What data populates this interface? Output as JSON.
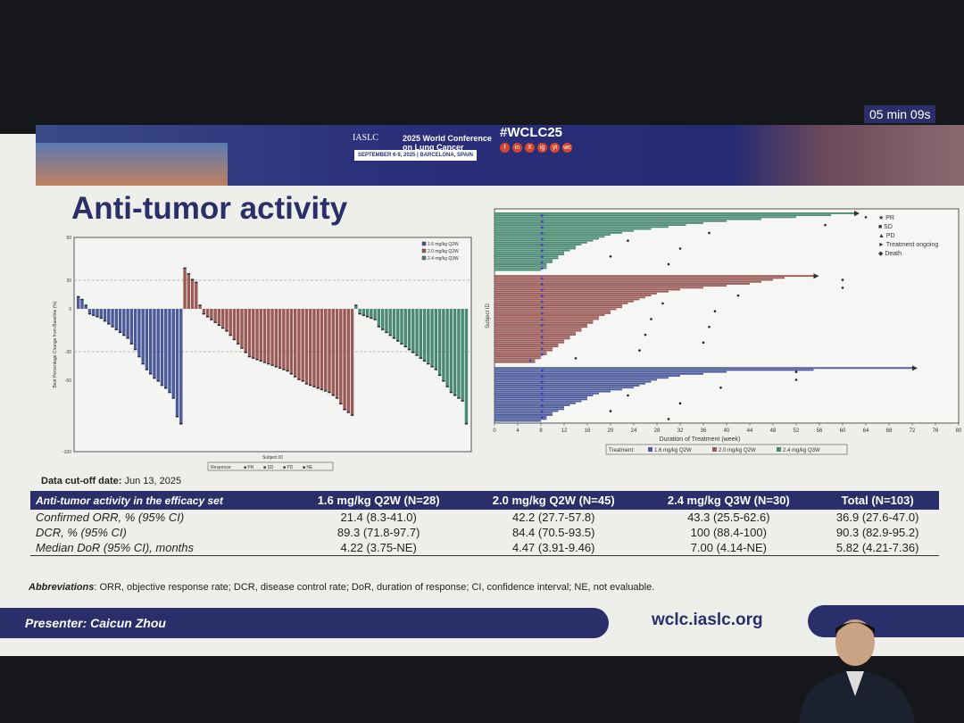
{
  "header": {
    "org": "IASLC",
    "conference": "2025 World Conference on Lung Cancer",
    "dates": "SEPTEMBER 6-9, 2025 | BARCELONA, SPAIN",
    "hashtag": "#WCLC25",
    "socials": [
      "f",
      "in",
      "X",
      "ig",
      "yt",
      "wc"
    ],
    "timer": "05 min 09s"
  },
  "title": "Anti-tumor activity",
  "colors": {
    "arm1": "#4b5a9a",
    "arm2": "#9a5a55",
    "arm3": "#4a8a72",
    "navy": "#2a2f6a"
  },
  "chart_data": [
    {
      "type": "bar",
      "subtype": "waterfall",
      "xlabel": "Subject ID",
      "ylabel": "Best Percentage Change from Baseline (%)",
      "ylim": [
        -100,
        50
      ],
      "yticks": [
        50,
        20,
        0,
        -30,
        -50,
        -100
      ],
      "reference_lines": [
        20,
        -30
      ],
      "legend": [
        "1.6 mg/kg Q2W",
        "2.0 mg/kg Q2W",
        "2.4 mg/kg Q3W"
      ],
      "legend_placement": "top-right",
      "response_legend": {
        "title": "Response:",
        "items": [
          "PR",
          "SD",
          "PD",
          "NE"
        ]
      },
      "series": [
        {
          "name": "1.6 mg/kg Q2W",
          "values": [
            8,
            6,
            2,
            -3,
            -4,
            -5,
            -6,
            -8,
            -10,
            -12,
            -14,
            -16,
            -18,
            -20,
            -24,
            -28,
            -33,
            -38,
            -42,
            -45,
            -48,
            -50,
            -53,
            -55,
            -58,
            -62,
            -75,
            -80
          ]
        },
        {
          "name": "2.0 mg/kg Q2W",
          "values": [
            28,
            24,
            20,
            18,
            2,
            -3,
            -5,
            -7,
            -9,
            -11,
            -13,
            -15,
            -18,
            -21,
            -24,
            -27,
            -30,
            -33,
            -34,
            -35,
            -36,
            -37,
            -38,
            -39,
            -40,
            -41,
            -42,
            -43,
            -45,
            -47,
            -49,
            -50,
            -52,
            -53,
            -54,
            -55,
            -56,
            -57,
            -58,
            -60,
            -62,
            -66,
            -70,
            -72,
            -74
          ]
        },
        {
          "name": "2.4 mg/kg Q3W",
          "values": [
            2,
            -3,
            -4,
            -5,
            -6,
            -7,
            -12,
            -14,
            -16,
            -18,
            -20,
            -22,
            -24,
            -26,
            -28,
            -30,
            -32,
            -34,
            -36,
            -38,
            -40,
            -42,
            -46,
            -50,
            -54,
            -58,
            -60,
            -62,
            -64,
            -80
          ]
        }
      ]
    },
    {
      "type": "bar",
      "subtype": "swimmer",
      "xlabel": "Duration of Treatment (week)",
      "ylabel": "Subject ID",
      "xlim": [
        0,
        80
      ],
      "xticks": [
        0,
        4,
        8,
        12,
        16,
        20,
        24,
        28,
        32,
        36,
        40,
        44,
        48,
        52,
        56,
        60,
        64,
        68,
        72,
        76,
        80
      ],
      "legend": [
        "PR",
        "SD",
        "PD",
        "Treatment ongoing",
        "Death"
      ],
      "legend_placement": "top-right",
      "treatment_legend": {
        "title": "Treatment:",
        "items": [
          "1.6 mg/kg Q2W",
          "2.0 mg/kg Q2W",
          "2.4 mg/kg Q3W"
        ]
      },
      "series": [
        {
          "name": "2.4 mg/kg Q3W",
          "values": [
            62,
            58,
            52,
            46,
            40,
            36,
            33,
            30,
            27,
            24,
            22,
            20,
            19,
            18,
            17,
            16,
            15,
            14,
            14,
            13,
            12,
            12,
            11,
            11,
            10,
            10,
            9,
            9,
            9,
            8
          ]
        },
        {
          "name": "2.0 mg/kg Q2W",
          "values": [
            55,
            50,
            48,
            46,
            44,
            40,
            36,
            32,
            30,
            28,
            27,
            26,
            25,
            24,
            23,
            22,
            22,
            21,
            20,
            20,
            19,
            18,
            18,
            17,
            17,
            16,
            16,
            15,
            15,
            14,
            14,
            13,
            13,
            12,
            12,
            11,
            11,
            10,
            10,
            9,
            9,
            8,
            8,
            7,
            7
          ]
        },
        {
          "name": "1.6 mg/kg Q2W",
          "values": [
            72,
            55,
            40,
            36,
            32,
            30,
            28,
            27,
            26,
            25,
            24,
            22,
            20,
            18,
            17,
            16,
            16,
            15,
            14,
            13,
            12,
            12,
            11,
            10,
            10,
            9,
            9,
            8
          ]
        }
      ]
    }
  ],
  "cutoff": {
    "label": "Data cut-off date:",
    "value": "Jun 13, 2025"
  },
  "table": {
    "headers": [
      "Anti-tumor activity in the efficacy set",
      "1.6 mg/kg Q2W (N=28)",
      "2.0 mg/kg Q2W (N=45)",
      "2.4 mg/kg Q3W (N=30)",
      "Total (N=103)"
    ],
    "rows": [
      [
        "Confirmed ORR, % (95% CI)",
        "21.4 (8.3-41.0)",
        "42.2 (27.7-57.8)",
        "43.3 (25.5-62.6)",
        "36.9 (27.6-47.0)"
      ],
      [
        "DCR, % (95% CI)",
        "89.3 (71.8-97.7)",
        "84.4 (70.5-93.5)",
        "100 (88.4-100)",
        "90.3 (82.9-95.2)"
      ],
      [
        "Median DoR (95% CI), months",
        "4.22 (3.75-NE)",
        "4.47 (3.91-9.46)",
        "7.00 (4.14-NE)",
        "5.82 (4.21-7.36)"
      ]
    ]
  },
  "abbreviations": {
    "label": "Abbreviations",
    "text": ": ORR, objective response rate; DCR, disease control rate; DoR, duration of response; CI, confidence interval; NE, not evaluable."
  },
  "footer": {
    "presenter": "Presenter: Caicun Zhou",
    "site": "wclc.iaslc.org"
  }
}
